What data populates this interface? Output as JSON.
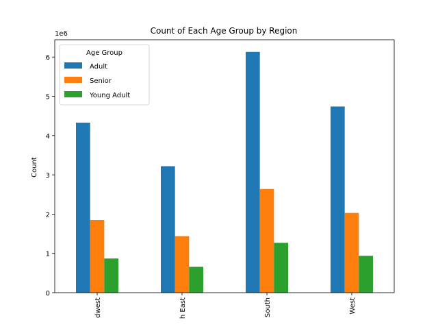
{
  "chart_data": {
    "type": "bar",
    "title": "Count of Each Age Group by Region",
    "xlabel": "",
    "ylabel": "Count",
    "y_multiplier_label": "1e6",
    "categories": [
      "Midwest",
      "North East",
      "South",
      "West"
    ],
    "category_labels_visible": [
      "dwest",
      "h East",
      "South",
      "West"
    ],
    "series": [
      {
        "name": "Adult",
        "color": "#1f77b4",
        "values": [
          4330000,
          3220000,
          6130000,
          4740000
        ]
      },
      {
        "name": "Senior",
        "color": "#ff7f0e",
        "values": [
          1850000,
          1440000,
          2640000,
          2030000
        ]
      },
      {
        "name": "Young Adult",
        "color": "#2ca02c",
        "values": [
          870000,
          660000,
          1270000,
          940000
        ]
      }
    ],
    "ylim": [
      0,
      6440000
    ],
    "yticks": [
      0,
      1000000,
      2000000,
      3000000,
      4000000,
      5000000,
      6000000
    ],
    "ytick_labels": [
      "0",
      "1",
      "2",
      "3",
      "4",
      "5",
      "6"
    ],
    "legend": {
      "title": "Age Group",
      "placement": "upper-left"
    },
    "grid": false
  }
}
